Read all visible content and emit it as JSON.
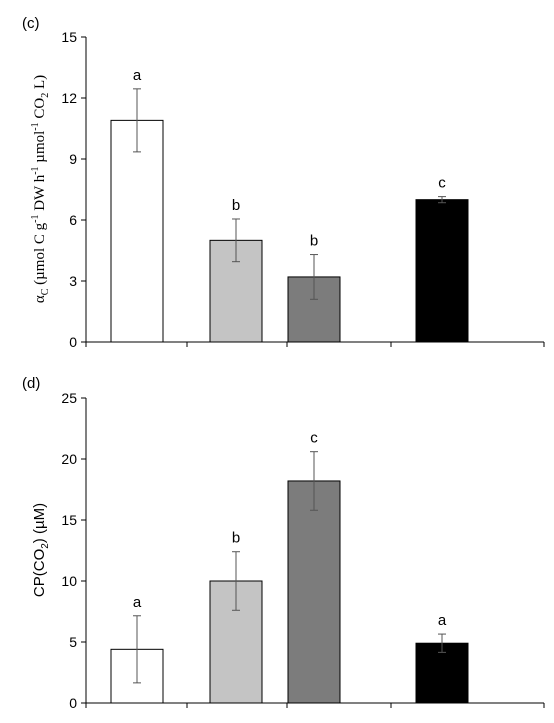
{
  "chart_data": [
    {
      "type": "bar",
      "panel_label": "(c)",
      "ylabel": {
        "symbol": "α",
        "symbol_sub": "C",
        "parts": [
          {
            "t": " (µmol C g",
            "s": "n"
          },
          {
            "t": "-1",
            "s": "sup"
          },
          {
            "t": " DW h",
            "s": "n"
          },
          {
            "t": "-1",
            "s": "sup"
          },
          {
            "t": " µmol",
            "s": "n"
          },
          {
            "t": "-1",
            "s": "sup"
          },
          {
            "t": " CO",
            "s": "n"
          },
          {
            "t": "2",
            "s": "sub"
          },
          {
            "t": " L)",
            "s": "n"
          }
        ]
      },
      "ylim": [
        0,
        15
      ],
      "yticks": [
        "0",
        "3",
        "6",
        "9",
        "12",
        "15"
      ],
      "yticks_values": [
        0,
        3,
        6,
        9,
        12,
        15
      ],
      "values": [
        10.9,
        5.0,
        3.2,
        7.0
      ],
      "errors": [
        1.55,
        1.05,
        1.1,
        0.15
      ],
      "sig_letters": [
        "a",
        "b",
        "b",
        "c"
      ],
      "bar_colors": [
        "#ffffff",
        "#c4c4c4",
        "#7c7c7c",
        "#000000"
      ]
    },
    {
      "type": "bar",
      "panel_label": "(d)",
      "ylabel": {
        "parts": [
          {
            "t": "CP(CO",
            "s": "n"
          },
          {
            "t": "2",
            "s": "sub"
          },
          {
            "t": ") (µM)",
            "s": "n"
          }
        ]
      },
      "ylim": [
        0,
        25
      ],
      "yticks": [
        "0",
        "5",
        "10",
        "15",
        "20",
        "25"
      ],
      "yticks_values": [
        0,
        5,
        10,
        15,
        20,
        25
      ],
      "values": [
        4.4,
        10.0,
        18.2,
        4.9
      ],
      "errors": [
        2.75,
        2.4,
        2.4,
        0.75
      ],
      "sig_letters": [
        "a",
        "b",
        "c",
        "a"
      ],
      "bar_colors": [
        "#ffffff",
        "#c4c4c4",
        "#7c7c7c",
        "#000000"
      ]
    }
  ]
}
